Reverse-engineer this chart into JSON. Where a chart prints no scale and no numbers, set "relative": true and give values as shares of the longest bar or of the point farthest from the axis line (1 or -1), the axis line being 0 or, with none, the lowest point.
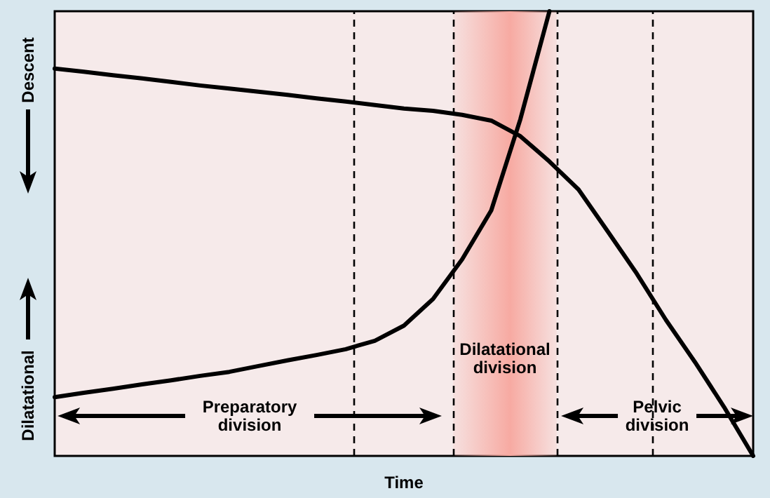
{
  "chart_data": {
    "type": "line",
    "relative": true,
    "xlabel": "Time",
    "categories": [
      null,
      null,
      null,
      null,
      null,
      null,
      null,
      null,
      null,
      null,
      null,
      null,
      null,
      null,
      null,
      null,
      null,
      null,
      null,
      null,
      null,
      null,
      null,
      null,
      null
    ],
    "series": [
      {
        "color": "#000000",
        "values": [
          0.871,
          0.864,
          0.856,
          0.849,
          0.841,
          0.833,
          0.826,
          0.819,
          0.812,
          0.804,
          0.797,
          0.789,
          0.781,
          0.776,
          0.767,
          0.754,
          0.719,
          0.662,
          0.599,
          0.505,
          0.41,
          0.306,
          0.211,
          0.11,
          0
        ]
      },
      {
        "color": "#000000",
        "values": [
          0.132,
          0.142,
          0.151,
          0.161,
          0.17,
          0.18,
          0.189,
          0.202,
          0.215,
          0.227,
          0.24,
          0.259,
          0.293,
          0.353,
          0.442,
          0.552,
          0.757,
          1,
          null,
          null,
          null,
          null,
          null,
          null,
          null
        ]
      }
    ],
    "annotations": [
      "Descent",
      "Dilatational",
      "Preparatory division",
      "Dilatational division",
      "Pelvic division"
    ],
    "grid": false,
    "marker": "none",
    "line_style": "solid"
  }
}
